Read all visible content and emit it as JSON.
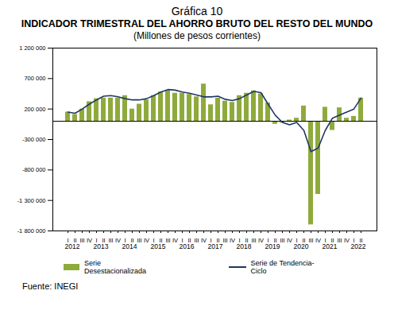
{
  "chart_data": {
    "type": "bar",
    "title": "Gráfica 10",
    "subtitle": "INDICADOR TRIMESTRAL DEL AHORRO BRUTO DEL RESTO DEL MUNDO",
    "y_label": "(Millones de pesos corrientes)",
    "source": "Fuente: INEGI",
    "categories": [
      "I",
      "II",
      "III",
      "IV",
      "I",
      "II",
      "III",
      "IV",
      "I",
      "II",
      "III",
      "IV",
      "I",
      "II",
      "III",
      "IV",
      "I",
      "II",
      "III",
      "IV",
      "I",
      "II",
      "III",
      "IV",
      "I",
      "II",
      "III",
      "IV",
      "I",
      "II",
      "III",
      "IV",
      "I",
      "II",
      "III",
      "IV",
      "I",
      "II",
      "III",
      "IV",
      "I",
      "II"
    ],
    "years": [
      "2012",
      "2013",
      "2014",
      "2015",
      "2016",
      "2017",
      "2018",
      "2019",
      "2020",
      "2021",
      "2022"
    ],
    "series": [
      {
        "name": "Serie Desestacionalizada",
        "type": "bar",
        "color": "#8faa3c",
        "values": [
          150000,
          110000,
          200000,
          320000,
          370000,
          380000,
          380000,
          380000,
          420000,
          200000,
          280000,
          350000,
          420000,
          480000,
          500000,
          460000,
          460000,
          440000,
          400000,
          610000,
          270000,
          380000,
          330000,
          310000,
          420000,
          460000,
          500000,
          450000,
          300000,
          -50000,
          -30000,
          20000,
          50000,
          250000,
          -1700000,
          -1200000,
          230000,
          -150000,
          220000,
          50000,
          80000,
          380000
        ]
      },
      {
        "name": "Serie de Tendencia-Ciclo",
        "type": "line",
        "color": "#1f3864",
        "values": [
          150000,
          130000,
          200000,
          280000,
          350000,
          410000,
          420000,
          400000,
          370000,
          350000,
          350000,
          370000,
          420000,
          480000,
          520000,
          510000,
          480000,
          460000,
          430000,
          400000,
          400000,
          410000,
          360000,
          340000,
          370000,
          430000,
          490000,
          470000,
          280000,
          100000,
          -20000,
          -60000,
          -20000,
          -150000,
          -500000,
          -440000,
          -150000,
          50000,
          100000,
          150000,
          200000,
          380000
        ]
      }
    ],
    "ylim": [
      -1800000,
      1200000
    ],
    "yticks": [
      {
        "value": -1800000,
        "label": "-1 800 000"
      },
      {
        "value": -1300000,
        "label": "-1 300 000"
      },
      {
        "value": -800000,
        "label": "-800 000"
      },
      {
        "value": -300000,
        "label": "-300 000"
      },
      {
        "value": 200000,
        "label": "200 000"
      },
      {
        "value": 700000,
        "label": "700 000"
      },
      {
        "value": 1200000,
        "label": "1 200 000"
      }
    ],
    "grid": false,
    "legend": "bottom"
  }
}
